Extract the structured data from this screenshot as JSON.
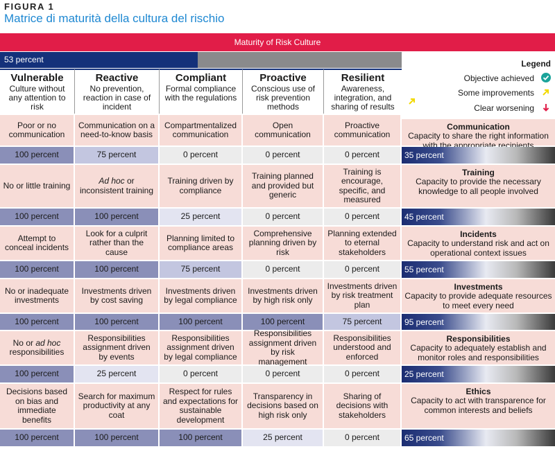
{
  "figure": {
    "label": "FIGURA 1",
    "title": "Matrice di maturità della cultura del rischio"
  },
  "banner": "Maturity of Risk Culture",
  "overall": {
    "text": "53 percent",
    "value": 53
  },
  "legend": {
    "title": "Legend",
    "items": [
      {
        "label": "Objective achieved",
        "icon": "check-circle-icon",
        "color": "#1aa39a"
      },
      {
        "label": "Some improvements",
        "icon": "arrow-up-right-icon",
        "color": "#f2d900"
      },
      {
        "label": "Clear worsening",
        "icon": "arrow-down-icon",
        "color": "#e11d48"
      }
    ]
  },
  "levels": [
    {
      "name": "Vulnerable",
      "desc": "Culture without any attention to risk"
    },
    {
      "name": "Reactive",
      "desc": "No prevention, reaction in case of incident"
    },
    {
      "name": "Compliant",
      "desc": "Formal compliance with the regulations"
    },
    {
      "name": "Proactive",
      "desc": "Conscious use of risk prevention methods"
    },
    {
      "name": "Resilient",
      "desc": "Awareness, integration, and sharing of results"
    }
  ],
  "dimensions": [
    {
      "title": "Communication",
      "desc": "Capacity to share the right information with the appropriate recipients",
      "score": "35 percent",
      "score_value": 35,
      "cells": [
        "Poor or no communication",
        "Communication on a need-to-know basis",
        "Compartmentalized communication",
        "Open communication",
        "Proactive communication"
      ],
      "percents": [
        "100 percent",
        "75 percent",
        "0 percent",
        "0 percent",
        "0 percent"
      ]
    },
    {
      "title": "Training",
      "desc": "Capacity to provide the necessary knowledge to all people involved",
      "score": "45 percent",
      "score_value": 45,
      "cells": [
        "No or little training",
        "Ad hoc or inconsistent training",
        "Training driven by compliance",
        "Training planned and provided but generic",
        "Training is encourage, specific, and measured"
      ],
      "percents": [
        "100 percent",
        "100 percent",
        "25 percent",
        "0 percent",
        "0 percent"
      ]
    },
    {
      "title": "Incidents",
      "desc": "Capacity to understand risk and act on operational context issues",
      "score": "55 percent",
      "score_value": 55,
      "cells": [
        "Attempt to conceal incidents",
        "Look for a culprit rather than the cause",
        "Planning limited to compliance areas",
        "Comprehensive planning driven by risk",
        "Planning extended to eternal stakeholders"
      ],
      "percents": [
        "100 percent",
        "100 percent",
        "75 percent",
        "0 percent",
        "0 percent"
      ]
    },
    {
      "title": "Investments",
      "desc": "Capacity to provide adequate resources to meet every need",
      "score": "95 percent",
      "score_value": 95,
      "cells": [
        "No or inadequate investments",
        "Investments driven by cost saving",
        "Investments driven by legal compliance",
        "Investments driven by high risk only",
        "Investments driven by risk treatment plan"
      ],
      "percents": [
        "100 percent",
        "100 percent",
        "100 percent",
        "100 percent",
        "75 percent"
      ]
    },
    {
      "title": "Responsibilities",
      "desc": "Capacity to adequately establish and monitor roles and responsibilities",
      "score": "25 percent",
      "score_value": 25,
      "cells": [
        "No or ad hoc responsibilities",
        "Responsibilities assignment driven by events",
        "Responsibilities assignment driven by legal compliance",
        "Responsibilities assignment driven by risk management",
        "Responsibilities understood and enforced"
      ],
      "percents": [
        "100 percent",
        "25 percent",
        "0 percent",
        "0 percent",
        "0 percent"
      ]
    },
    {
      "title": "Ethics",
      "desc": "Capacity to act with transparence for common interests and beliefs",
      "score": "65 percent",
      "score_value": 65,
      "cells": [
        "Decisions based on bias and immediate benefits",
        "Search for maximum productivity at any coat",
        "Respect for rules and expectations for sustainable development",
        "Transparency in decisions based on high risk only",
        "Sharing of decisions with stakeholders"
      ],
      "percents": [
        "100 percent",
        "100 percent",
        "100 percent",
        "25 percent",
        "0 percent"
      ]
    }
  ]
}
